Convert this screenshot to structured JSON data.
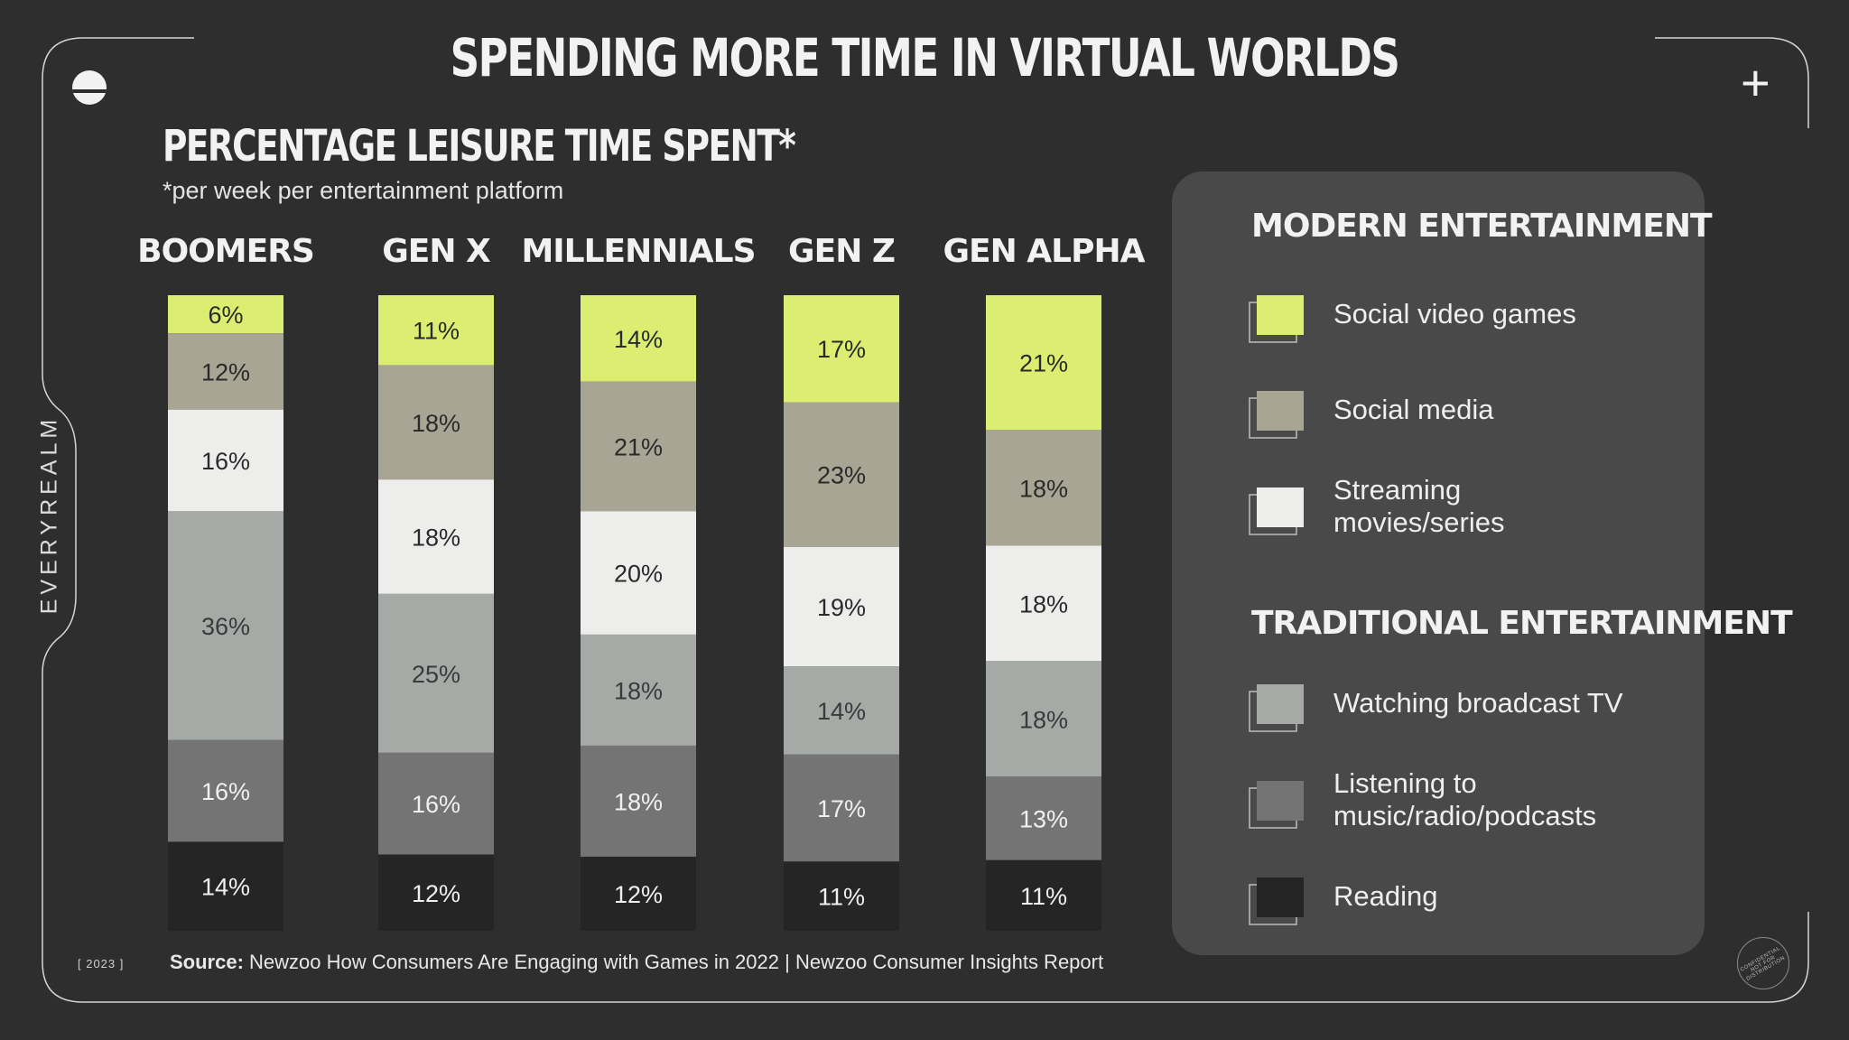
{
  "title": "SPENDING MORE TIME IN VIRTUAL WORLDS",
  "brand": "EVERYREALM",
  "year": "[ 2023 ]",
  "source": {
    "label": "Source:",
    "text": " Newzoo How Consumers Are Engaging with Games in 2022 | Newzoo Consumer Insights Report"
  },
  "stamp": "CONFIDENTIAL NOT FOR DISTRIBUTION",
  "icons": {
    "logo": "half-circle-logo-icon",
    "plus": "plus-icon"
  },
  "colors": {
    "background": "#2e2e2e",
    "social_video_games": "#dcee72",
    "social_media": "#a8a594",
    "streaming": "#ededec",
    "broadcast_tv": "#a5aaa6",
    "music_radio_podcasts": "#747474",
    "reading": "#252525",
    "legend_panel": "#494949"
  },
  "chart_data": {
    "type": "bar",
    "stacked": true,
    "title": "PERCENTAGE LEISURE TIME SPENT*",
    "subtitle": "*per week per entertainment platform",
    "categories": [
      "BOOMERS",
      "GEN X",
      "MILLENNIALS",
      "GEN Z",
      "GEN ALPHA"
    ],
    "series": [
      {
        "name": "Social video games",
        "group": "MODERN ENTERTAINMENT",
        "values": [
          6,
          11,
          14,
          17,
          21
        ]
      },
      {
        "name": "Social media",
        "group": "MODERN ENTERTAINMENT",
        "values": [
          12,
          18,
          21,
          23,
          18
        ]
      },
      {
        "name": "Streaming movies/series",
        "group": "MODERN ENTERTAINMENT",
        "values": [
          16,
          18,
          20,
          19,
          18
        ]
      },
      {
        "name": "Watching broadcast TV",
        "group": "TRADITIONAL ENTERTAINMENT",
        "values": [
          36,
          25,
          18,
          14,
          18
        ]
      },
      {
        "name": "Listening to music/radio/podcasts",
        "group": "TRADITIONAL ENTERTAINMENT",
        "values": [
          16,
          16,
          18,
          17,
          13
        ]
      },
      {
        "name": "Reading",
        "group": "TRADITIONAL ENTERTAINMENT",
        "values": [
          14,
          12,
          12,
          11,
          11
        ]
      }
    ],
    "value_suffix": "%",
    "legend_position": "right",
    "grid": false
  },
  "legend": {
    "groups": [
      {
        "heading": "MODERN ENTERTAINMENT",
        "items": [
          {
            "lines": [
              "Social video games"
            ],
            "series_index": 0
          },
          {
            "lines": [
              "Social media"
            ],
            "series_index": 1
          },
          {
            "lines": [
              "Streaming",
              "movies/series"
            ],
            "series_index": 2
          }
        ]
      },
      {
        "heading": "TRADITIONAL ENTERTAINMENT",
        "items": [
          {
            "lines": [
              "Watching broadcast TV"
            ],
            "series_index": 3
          },
          {
            "lines": [
              "Listening to",
              "music/radio/podcasts"
            ],
            "series_index": 4
          },
          {
            "lines": [
              "Reading"
            ],
            "series_index": 5
          }
        ]
      }
    ]
  }
}
